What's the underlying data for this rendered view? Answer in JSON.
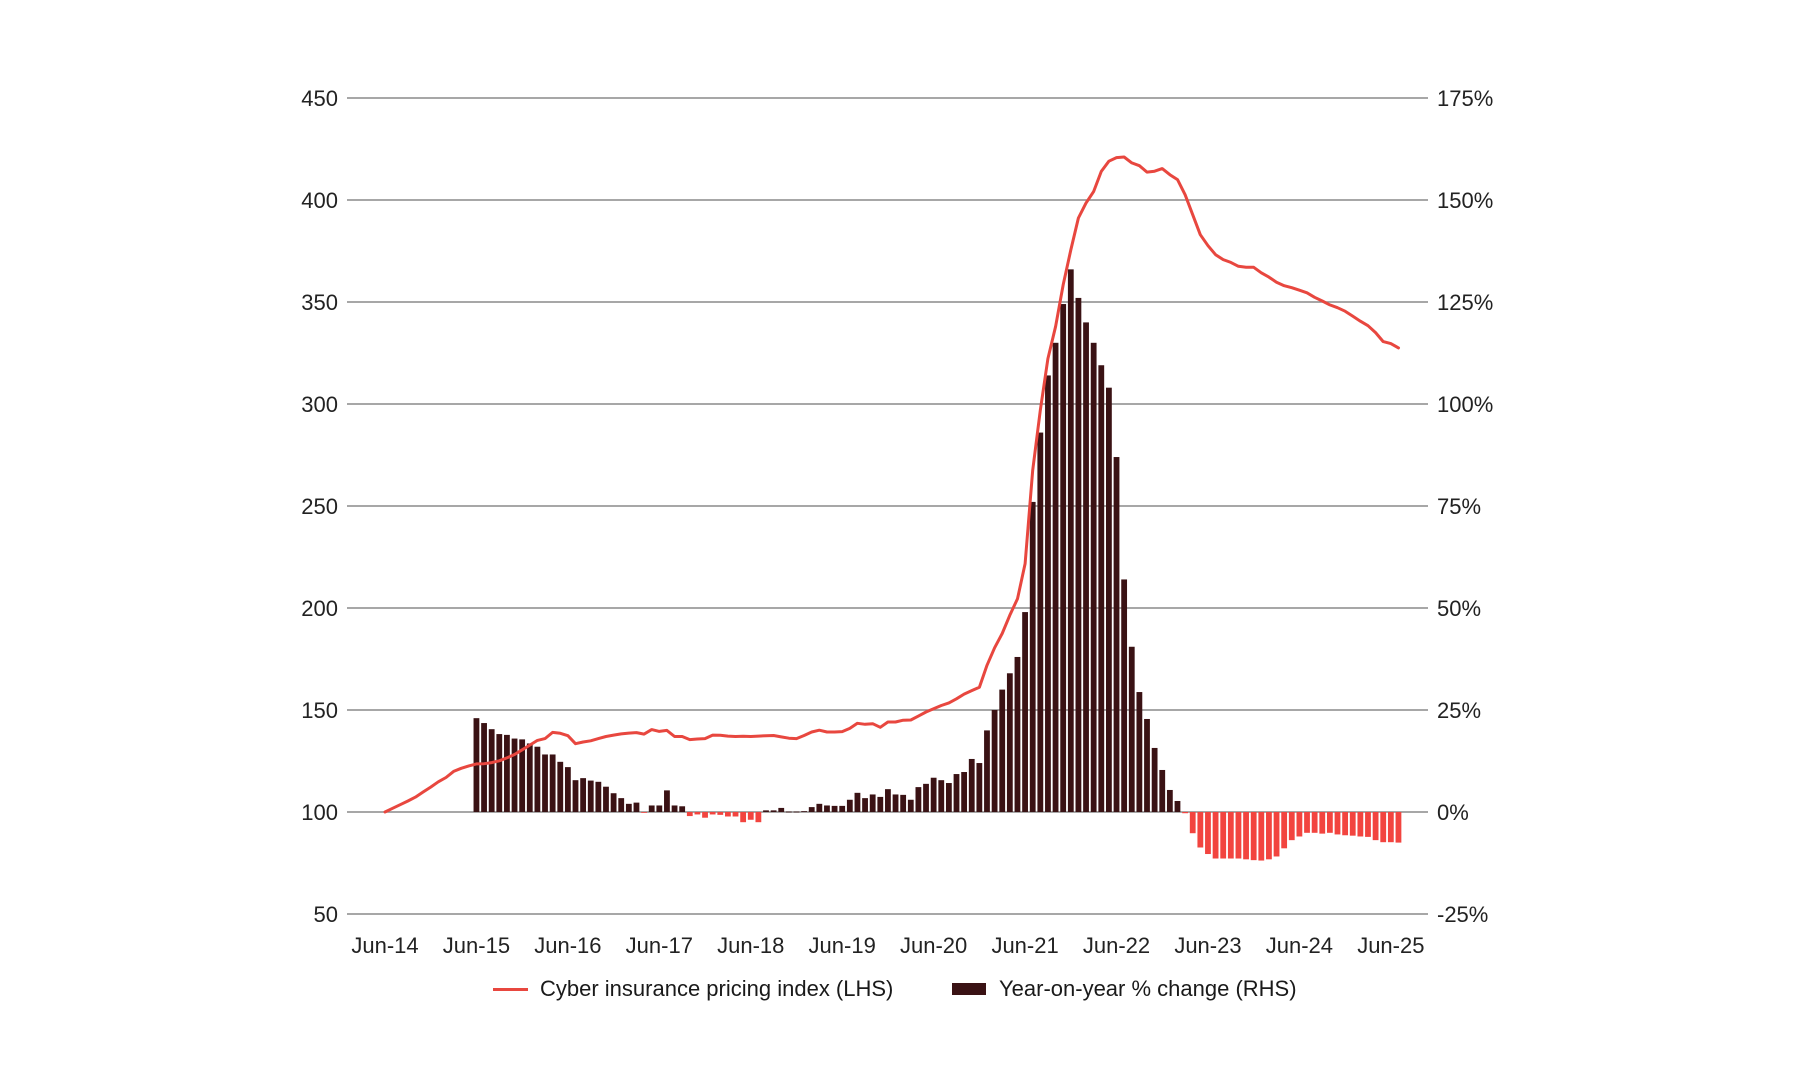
{
  "colors": {
    "line": "#e8473f",
    "bar_positive": "#3a1214",
    "bar_negative": "#f2443f",
    "grid": "#8a8a8a",
    "text": "#222222"
  },
  "legend": {
    "line_label": "Cyber insurance pricing index (LHS)",
    "bar_label": "Year-on-year % change (RHS)"
  },
  "chart_data": {
    "type": "bar+line",
    "title": "",
    "xlabel": "",
    "ylabel_left": "Cyber insurance pricing index (LHS)",
    "ylabel_right": "Year-on-year % change (RHS)",
    "ylim_left": [
      50,
      450
    ],
    "ylim_right": [
      -25,
      175
    ],
    "grid": true,
    "legend_position": "bottom",
    "left_ticks": [
      "50",
      "100",
      "150",
      "200",
      "250",
      "300",
      "350",
      "400",
      "450"
    ],
    "left_tick_values": [
      50,
      100,
      150,
      200,
      250,
      300,
      350,
      400,
      450
    ],
    "right_ticks": [
      "-25%",
      "0%",
      "25%",
      "50%",
      "75%",
      "100%",
      "125%",
      "150%",
      "175%"
    ],
    "right_tick_values": [
      -25,
      0,
      25,
      50,
      75,
      100,
      125,
      150,
      175
    ],
    "x_ticks": [
      "Jun-14",
      "Jun-15",
      "Jun-16",
      "Jun-17",
      "Jun-18",
      "Jun-19",
      "Jun-20",
      "Jun-21",
      "Jun-22",
      "Jun-23",
      "Jun-24",
      "Jun-25"
    ],
    "x_tick_months": [
      0,
      12,
      24,
      36,
      48,
      60,
      72,
      84,
      96,
      108,
      120,
      132
    ],
    "x_unit": "months since Jun-14",
    "series": [
      {
        "name": "Cyber insurance pricing index (LHS)",
        "type": "line",
        "axis": "left",
        "start_month": 0,
        "values": [
          100,
          101.8,
          103.6,
          105.4,
          107.3,
          109.8,
          112.2,
          114.8,
          116.9,
          119.9,
          121.4,
          122.6,
          123.6,
          123.7,
          124.2,
          125.1,
          126.5,
          128.2,
          130.5,
          132.8,
          135.1,
          136,
          139,
          138.6,
          137.4,
          133.5,
          134.3,
          134.9,
          136,
          137,
          137.7,
          138.3,
          138.7,
          138.9,
          138.2,
          140.4,
          139.5,
          140,
          137,
          137,
          135.5,
          135.8,
          136,
          137.7,
          137.6,
          137.2,
          137,
          137.1,
          137,
          137.2,
          137.4,
          137.5,
          136.8,
          136.2,
          136,
          137.5,
          139.2,
          140.1,
          139.2,
          139.2,
          139.4,
          141,
          143.5,
          143,
          143.3,
          141.5,
          144.1,
          144.1,
          145,
          145.1,
          147,
          149,
          150.6,
          152.2,
          153.5,
          155.5,
          157.8,
          159.5,
          161.2,
          171.9,
          180.5,
          187.5,
          196.4,
          204.5,
          221.7,
          267.5,
          296.9,
          322.2,
          338,
          358.5,
          375.5,
          391.2,
          398.5,
          404.2,
          414,
          419,
          420.8,
          421.1,
          418.2,
          416.8,
          413.7,
          414.1,
          415.4,
          412.4,
          410,
          402.6,
          392.8,
          383,
          377.6,
          373.2,
          370.8,
          369.4,
          367.5,
          367,
          367,
          364.3,
          362.2,
          359.7,
          358,
          357,
          355.8,
          354.5,
          352.3,
          350.5,
          348.6,
          347.2,
          345.5,
          343.1,
          340.6,
          338.4,
          335,
          330.6,
          329.6,
          327.5
        ]
      },
      {
        "name": "Year-on-year % change (RHS)",
        "type": "bar",
        "axis": "right",
        "start_month": 12,
        "values": [
          23,
          21.8,
          20.3,
          19.1,
          18.9,
          18,
          17.8,
          16.8,
          16,
          14.1,
          14.1,
          12.3,
          11,
          7.8,
          8.3,
          7.7,
          7.4,
          6.2,
          4.6,
          3.4,
          2,
          2.3,
          -0.2,
          1.6,
          1.6,
          5.3,
          1.6,
          1.4,
          -1,
          -0.6,
          -1.4,
          -0.6,
          -0.7,
          -1.1,
          -1.1,
          -2.5,
          -1.9,
          -2.5,
          0.4,
          0.4,
          1,
          0.1,
          0.1,
          0.2,
          1.2,
          2,
          1.6,
          1.5,
          1.5,
          3,
          4.7,
          3.4,
          4.3,
          3.7,
          5.6,
          4.3,
          4.2,
          3,
          6.1,
          6.9,
          8.4,
          7.8,
          7.1,
          9.3,
          9.8,
          13,
          12,
          20,
          25,
          30,
          34,
          38,
          49,
          76,
          93,
          107,
          115,
          124.5,
          133,
          126,
          120,
          115,
          109.5,
          104,
          87,
          57,
          40.5,
          29.4,
          22.8,
          15.7,
          10.3,
          5.4,
          2.7,
          -0.3,
          -5.2,
          -8.7,
          -10.3,
          -11.4,
          -11.4,
          -11.4,
          -11.4,
          -11.6,
          -11.8,
          -11.9,
          -11.6,
          -10.9,
          -8.9,
          -6.9,
          -6,
          -5.1,
          -5.1,
          -5.3,
          -5.1,
          -5.5,
          -5.7,
          -5.8,
          -6,
          -6.1,
          -6.9,
          -7.4,
          -7.4,
          -7.5
        ]
      }
    ]
  }
}
